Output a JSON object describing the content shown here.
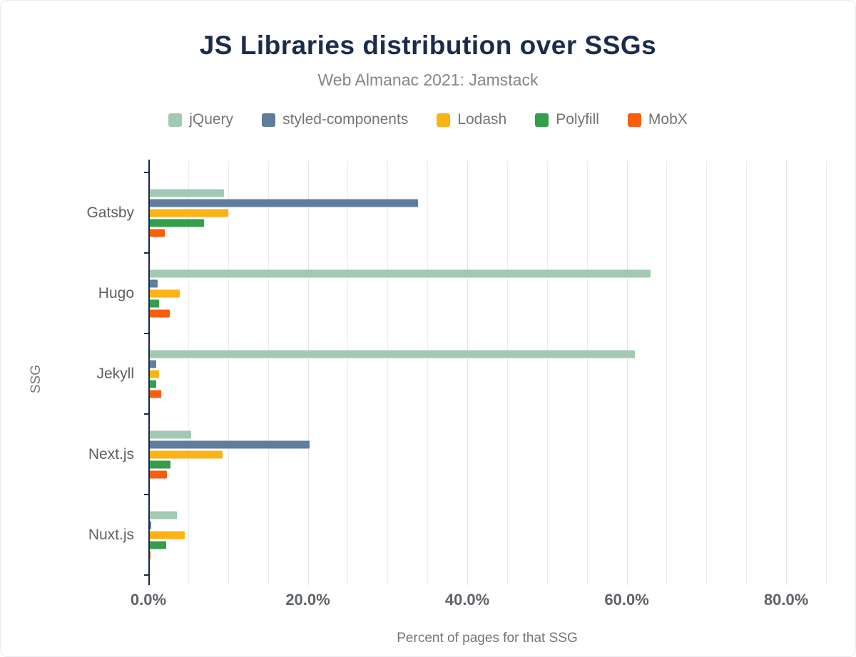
{
  "header": {
    "title": "JS Libraries distribution over SSGs",
    "subtitle": "Web Almanac 2021: Jamstack"
  },
  "chart_data": {
    "type": "bar",
    "orientation": "horizontal",
    "title": "JS Libraries distribution over SSGs",
    "subtitle": "Web Almanac 2021: Jamstack",
    "xlabel": "Percent of pages for that SSG",
    "ylabel": "SSG",
    "xlim": [
      0,
      85
    ],
    "grid": true,
    "grid_step": 5,
    "legend_position": "top",
    "categories": [
      "Gatsby",
      "Hugo",
      "Jekyll",
      "Next.js",
      "Nuxt.js"
    ],
    "series": [
      {
        "name": "jQuery",
        "color": "#a2c9b1",
        "values": [
          9.5,
          63.0,
          61.0,
          5.4,
          3.6
        ]
      },
      {
        "name": "styled-components",
        "color": "#5f7d9c",
        "values": [
          33.8,
          1.2,
          1.0,
          20.2,
          0.4
        ]
      },
      {
        "name": "Lodash",
        "color": "#fcb316",
        "values": [
          10.0,
          3.9,
          1.3,
          9.3,
          4.6
        ]
      },
      {
        "name": "Polyfill",
        "color": "#339e4c",
        "values": [
          7.0,
          1.3,
          1.0,
          2.8,
          2.2
        ]
      },
      {
        "name": "MobX",
        "color": "#f95d0e",
        "values": [
          2.1,
          2.7,
          1.6,
          2.3,
          0.3
        ]
      }
    ],
    "xticks": [
      {
        "value": 0,
        "label": "0.0%"
      },
      {
        "value": 20,
        "label": "20.0%"
      },
      {
        "value": 40,
        "label": "40.0%"
      },
      {
        "value": 60,
        "label": "60.0%"
      },
      {
        "value": 80,
        "label": "80.0%"
      }
    ]
  },
  "colors": {
    "title": "#1b2b4d",
    "subtitle": "#868686",
    "axis": "#16294c",
    "tick_label": "#5f6368",
    "gridline": "#ececec",
    "background": "#ffffff"
  }
}
